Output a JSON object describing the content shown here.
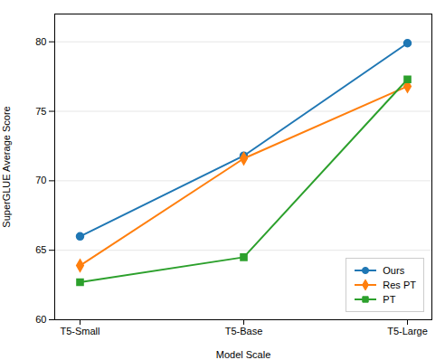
{
  "chart_data": {
    "type": "line",
    "categories": [
      "T5-Small",
      "T5-Base",
      "T5-Large"
    ],
    "series": [
      {
        "name": "Ours",
        "color": "#1f77b4",
        "marker": "circle",
        "values": [
          66.0,
          71.8,
          79.9
        ]
      },
      {
        "name": "Res PT",
        "color": "#ff7f0e",
        "marker": "diamond",
        "values": [
          63.9,
          71.6,
          76.8
        ]
      },
      {
        "name": "PT",
        "color": "#2ca02c",
        "marker": "square",
        "values": [
          62.7,
          64.5,
          77.3
        ]
      }
    ],
    "xlabel": "Model Scale",
    "ylabel": "SuperGLUE Average Score",
    "ylim": [
      60,
      82
    ],
    "yticks": [
      60,
      65,
      70,
      75,
      80
    ],
    "grid": true,
    "legend": "lower right"
  }
}
